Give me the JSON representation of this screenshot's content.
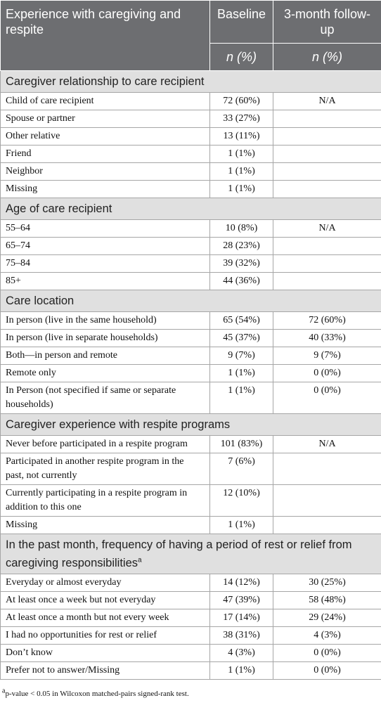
{
  "header": {
    "columns": [
      "Experience with caregiving and respite",
      "Baseline",
      "3-month follow-up"
    ],
    "units": [
      "n (%)",
      "n (%)"
    ]
  },
  "sections": [
    {
      "title": "Caregiver relationship to care recipient",
      "rows": [
        [
          "Child of care recipient",
          "72 (60%)",
          "N/A"
        ],
        [
          "Spouse or partner",
          "33 (27%)",
          null
        ],
        [
          "Other relative",
          "13 (11%)",
          null
        ],
        [
          "Friend",
          "1 (1%)",
          null
        ],
        [
          "Neighbor",
          "1 (1%)",
          null
        ],
        [
          "Missing",
          "1 (1%)",
          null
        ]
      ]
    },
    {
      "title": "Age of care recipient",
      "rows": [
        [
          "55–64",
          "10 (8%)",
          "N/A"
        ],
        [
          "65–74",
          "28 (23%)",
          null
        ],
        [
          "75–84",
          "39 (32%)",
          null
        ],
        [
          "85+",
          "44 (36%)",
          null
        ]
      ]
    },
    {
      "title": "Care location",
      "rows": [
        [
          "In person (live in the same household)",
          "65 (54%)",
          "72 (60%)"
        ],
        [
          "In person (live in separate households)",
          "45 (37%)",
          "40 (33%)"
        ],
        [
          "Both—in person and remote",
          "9 (7%)",
          "9 (7%)"
        ],
        [
          "Remote only",
          "1 (1%)",
          "0 (0%)"
        ],
        [
          "In Person (not specified if same or separate households)",
          "1 (1%)",
          "0 (0%)"
        ]
      ]
    },
    {
      "title": "Caregiver experience with respite programs",
      "rows": [
        [
          "Never before participated in a respite program",
          "101 (83%)",
          "N/A"
        ],
        [
          "Participated in another respite program in the past, not currently",
          "7 (6%)",
          null
        ],
        [
          "Currently participating in a respite program in addition to this one",
          "12 (10%)",
          null
        ],
        [
          "Missing",
          "1 (1%)",
          null
        ]
      ]
    },
    {
      "title": "In the past month, frequency of having a period of rest or relief from caregiving responsibilities",
      "note": "a",
      "rows": [
        [
          "Everyday or almost everyday",
          "14 (12%)",
          "30 (25%)"
        ],
        [
          "At least once a week but not everyday",
          "47 (39%)",
          "58 (48%)"
        ],
        [
          "At least once a month but not every week",
          "17 (14%)",
          "29 (24%)"
        ],
        [
          "I had no opportunities for rest or relief",
          "38 (31%)",
          "4 (3%)"
        ],
        [
          "Don’t know",
          "4 (3%)",
          "0 (0%)"
        ],
        [
          "Prefer not to answer/Missing",
          "1 (1%)",
          "0 (0%)"
        ]
      ]
    }
  ],
  "footnote": {
    "marker": "a",
    "text": "p-value < 0.05 in Wilcoxon matched-pairs signed-rank test."
  }
}
